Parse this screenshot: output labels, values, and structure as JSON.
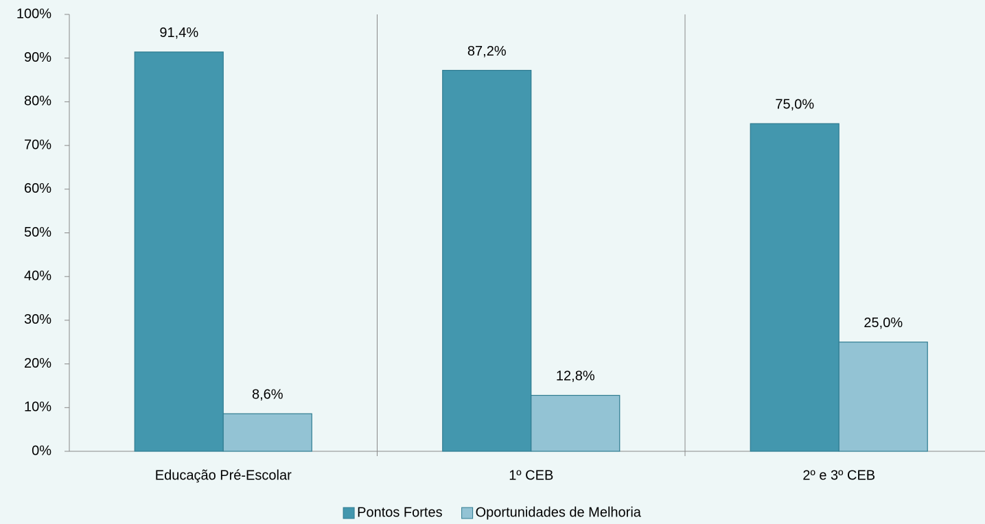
{
  "chart_data": {
    "type": "bar",
    "categories": [
      "Educação Pré-Escolar",
      "1º CEB",
      "2º e 3º CEB"
    ],
    "series": [
      {
        "name": "Pontos Fortes",
        "color": "#4397ae",
        "values": [
          91.4,
          87.2,
          75.0
        ],
        "value_labels": [
          "91,4%",
          "87,2%",
          "75,0%"
        ]
      },
      {
        "name": "Oportunidades de Melhoria",
        "color": "#93c3d4",
        "values": [
          8.6,
          12.8,
          25.0
        ],
        "value_labels": [
          "8,6%",
          "12,8%",
          "25,0%"
        ]
      }
    ],
    "ylim": [
      0,
      100
    ],
    "yticks": [
      {
        "value": 0,
        "label": "0%"
      },
      {
        "value": 10,
        "label": "10%"
      },
      {
        "value": 20,
        "label": "20%"
      },
      {
        "value": 30,
        "label": "30%"
      },
      {
        "value": 40,
        "label": "40%"
      },
      {
        "value": 50,
        "label": "50%"
      },
      {
        "value": 60,
        "label": "60%"
      },
      {
        "value": 70,
        "label": "70%"
      },
      {
        "value": 80,
        "label": "80%"
      },
      {
        "value": 90,
        "label": "90%"
      },
      {
        "value": 100,
        "label": "100%"
      }
    ],
    "legend": "bottom"
  }
}
